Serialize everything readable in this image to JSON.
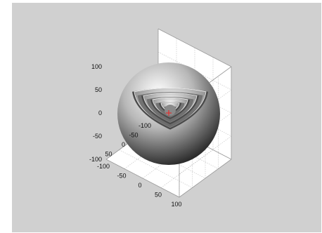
{
  "chart_data": {
    "type": "surface-3d",
    "title": "",
    "xlabel": "",
    "ylabel": "",
    "zlabel": "",
    "axes": {
      "x": {
        "range": [
          -100,
          100
        ],
        "ticks": [
          -100,
          -50,
          0,
          50,
          100
        ],
        "tick_labels": [
          "-100",
          "-50",
          "0",
          "50",
          "100"
        ]
      },
      "y": {
        "range": [
          -100,
          100
        ],
        "ticks": [
          -100,
          -50,
          0,
          50
        ],
        "tick_labels": [
          "-100",
          "-50",
          "0",
          "50"
        ]
      },
      "z": {
        "range": [
          -100,
          100
        ],
        "ticks": [
          -100,
          -50,
          0,
          50,
          100
        ],
        "tick_labels": [
          "-100",
          "-50",
          "0",
          "50",
          "100"
        ]
      }
    },
    "grid": true,
    "box": true,
    "shells": [
      {
        "radius": 80,
        "octant_cut": true
      },
      {
        "radius": 60,
        "octant_cut": true
      },
      {
        "radius": 40,
        "octant_cut": true
      },
      {
        "radius": 20,
        "octant_cut": true
      }
    ],
    "center_marker": {
      "x": 0,
      "y": 0,
      "z": 0,
      "symbol": "+",
      "color": "#e03030"
    },
    "colormap": "gray",
    "figure_background": "#d0d0d0",
    "axes_background": "#ffffff"
  }
}
